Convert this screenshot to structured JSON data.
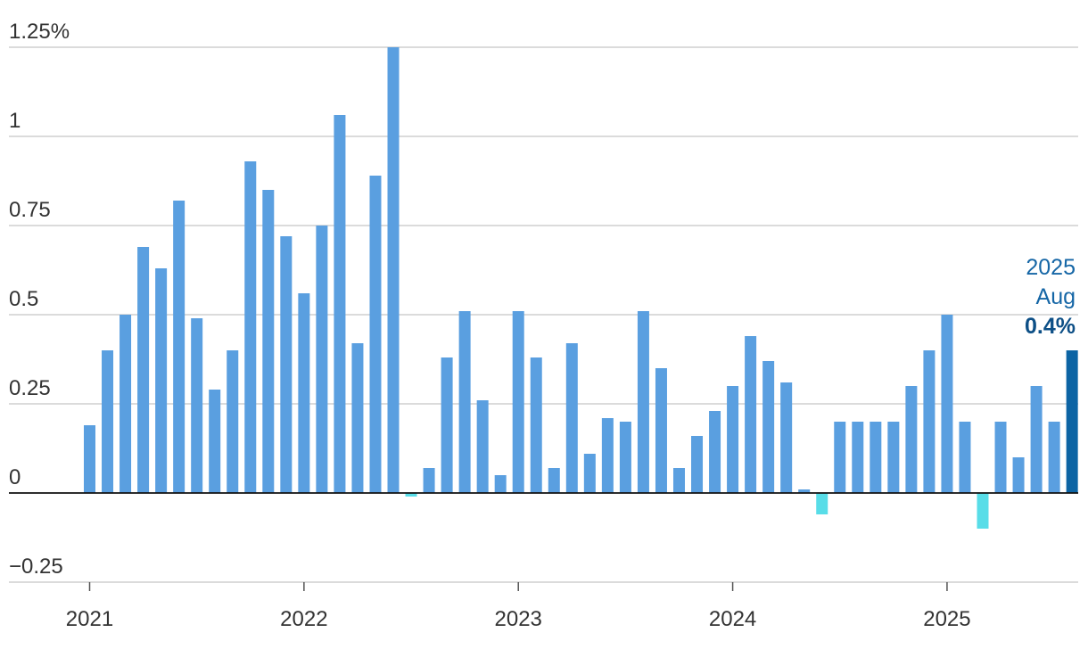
{
  "chart_data": {
    "type": "bar",
    "title": "",
    "xlabel": "",
    "ylabel": "",
    "ylim": [
      -0.25,
      1.25
    ],
    "yticks": [
      {
        "value": -0.25,
        "label": "−0.25"
      },
      {
        "value": 0,
        "label": "0"
      },
      {
        "value": 0.25,
        "label": "0.25"
      },
      {
        "value": 0.5,
        "label": "0.5"
      },
      {
        "value": 0.75,
        "label": "0.75"
      },
      {
        "value": 1,
        "label": "1"
      },
      {
        "value": 1.25,
        "label": "1.25%"
      }
    ],
    "xticks": [
      {
        "index": 0,
        "label": "2021"
      },
      {
        "index": 12,
        "label": "2022"
      },
      {
        "index": 24,
        "label": "2023"
      },
      {
        "index": 36,
        "label": "2024"
      },
      {
        "index": 48,
        "label": "2025"
      }
    ],
    "grid": true,
    "start": "2021-01",
    "values": [
      0.19,
      0.4,
      0.5,
      0.69,
      0.63,
      0.82,
      0.49,
      0.29,
      0.4,
      0.93,
      0.85,
      0.72,
      0.56,
      0.75,
      1.06,
      0.42,
      0.89,
      1.25,
      -0.01,
      0.07,
      0.38,
      0.51,
      0.26,
      0.05,
      0.51,
      0.38,
      0.07,
      0.42,
      0.11,
      0.21,
      0.2,
      0.51,
      0.35,
      0.07,
      0.16,
      0.23,
      0.3,
      0.44,
      0.37,
      0.31,
      0.01,
      -0.06,
      0.2,
      0.2,
      0.2,
      0.2,
      0.3,
      0.4,
      0.5,
      0.2,
      -0.1,
      0.2,
      0.1,
      0.3,
      0.2,
      0.4
    ],
    "colors": {
      "positive": "#5a9fe0",
      "negative": "#58dde8",
      "highlight": "#0c64a4"
    },
    "annotation": {
      "line1": "2025",
      "line2": "Aug",
      "value": "0.4%"
    }
  }
}
